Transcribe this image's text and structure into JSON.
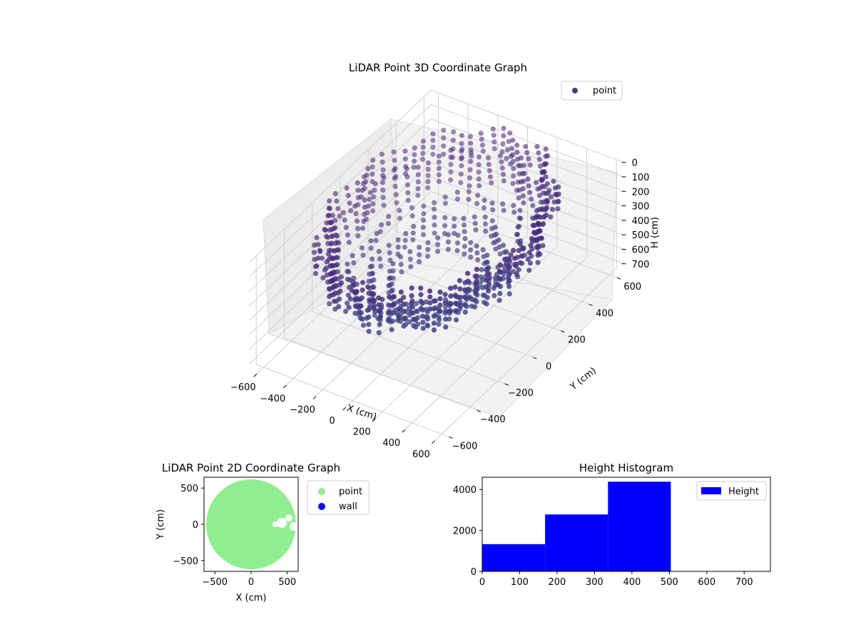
{
  "chart_data": [
    {
      "type": "scatter3d",
      "title": "LiDAR Point 3D Coordinate Graph",
      "xlabel": "X (cm)",
      "ylabel": "Y (cm)",
      "zlabel": "H (cm)",
      "xticks": [
        "−600",
        "−400",
        "−200",
        "0",
        "200",
        "400",
        "600"
      ],
      "yticks": [
        "−600",
        "−400",
        "−200",
        "0",
        "200",
        "400",
        "600"
      ],
      "zticks": [
        "0",
        "100",
        "200",
        "300",
        "400",
        "500",
        "600",
        "700"
      ],
      "xlim": [
        -650,
        650
      ],
      "ylim": [
        -650,
        650
      ],
      "zlim": [
        0,
        750
      ],
      "z_inverted": true,
      "grid": true,
      "legend": {
        "entries": [
          "point"
        ],
        "placement": "top-right"
      },
      "colormap": "viridis",
      "series": [
        {
          "name": "point",
          "rings": [
            {
              "radius": 600,
              "h_values": [
                0,
                50,
                100,
                150
              ],
              "points_per_ring": 72
            },
            {
              "radius": 550,
              "h_values": [
                100,
                150,
                200,
                250,
                300
              ],
              "points_per_ring": 60
            },
            {
              "radius": 450,
              "h_values": [
                300,
                350
              ],
              "points_per_ring": 48
            },
            {
              "radius": 350,
              "h_values": [
                350,
                400,
                450
              ],
              "points_per_ring": 40
            },
            {
              "radius": 250,
              "h_values": [
                400,
                450,
                500
              ],
              "points_per_ring": 30
            }
          ]
        }
      ]
    },
    {
      "type": "scatter",
      "title": "LiDAR Point 2D Coordinate Graph",
      "xlabel": "X (cm)",
      "ylabel": "Y (cm)",
      "xticks": [
        "−500",
        "0",
        "500"
      ],
      "yticks": [
        "500",
        "0",
        "−500"
      ],
      "xlim": [
        -650,
        650
      ],
      "ylim": [
        -650,
        650
      ],
      "legend": {
        "entries": [
          "point",
          "wall"
        ],
        "placement": "outside-right"
      },
      "colors": {
        "point": "#90ee90",
        "wall": "#0000ff"
      },
      "series": [
        {
          "name": "point",
          "shape": "filled disk",
          "radius": 620,
          "cx": 0,
          "cy": 0
        },
        {
          "name": "wall",
          "values": []
        }
      ]
    },
    {
      "type": "bar",
      "title": "Height Histogram",
      "xticks": [
        "0",
        "100",
        "200",
        "300",
        "400",
        "500",
        "600",
        "700"
      ],
      "yticks": [
        "0",
        "2000",
        "4000"
      ],
      "xlim": [
        0,
        770
      ],
      "ylim": [
        0,
        4600
      ],
      "legend": {
        "entries": [
          "Height"
        ],
        "placement": "upper right"
      },
      "colors": {
        "Height": "#0000ff"
      },
      "bins": [
        {
          "x0": 0,
          "x1": 168,
          "count": 1330
        },
        {
          "x0": 168,
          "x1": 336,
          "count": 2780
        },
        {
          "x0": 336,
          "x1": 504,
          "count": 4380
        }
      ]
    }
  ]
}
